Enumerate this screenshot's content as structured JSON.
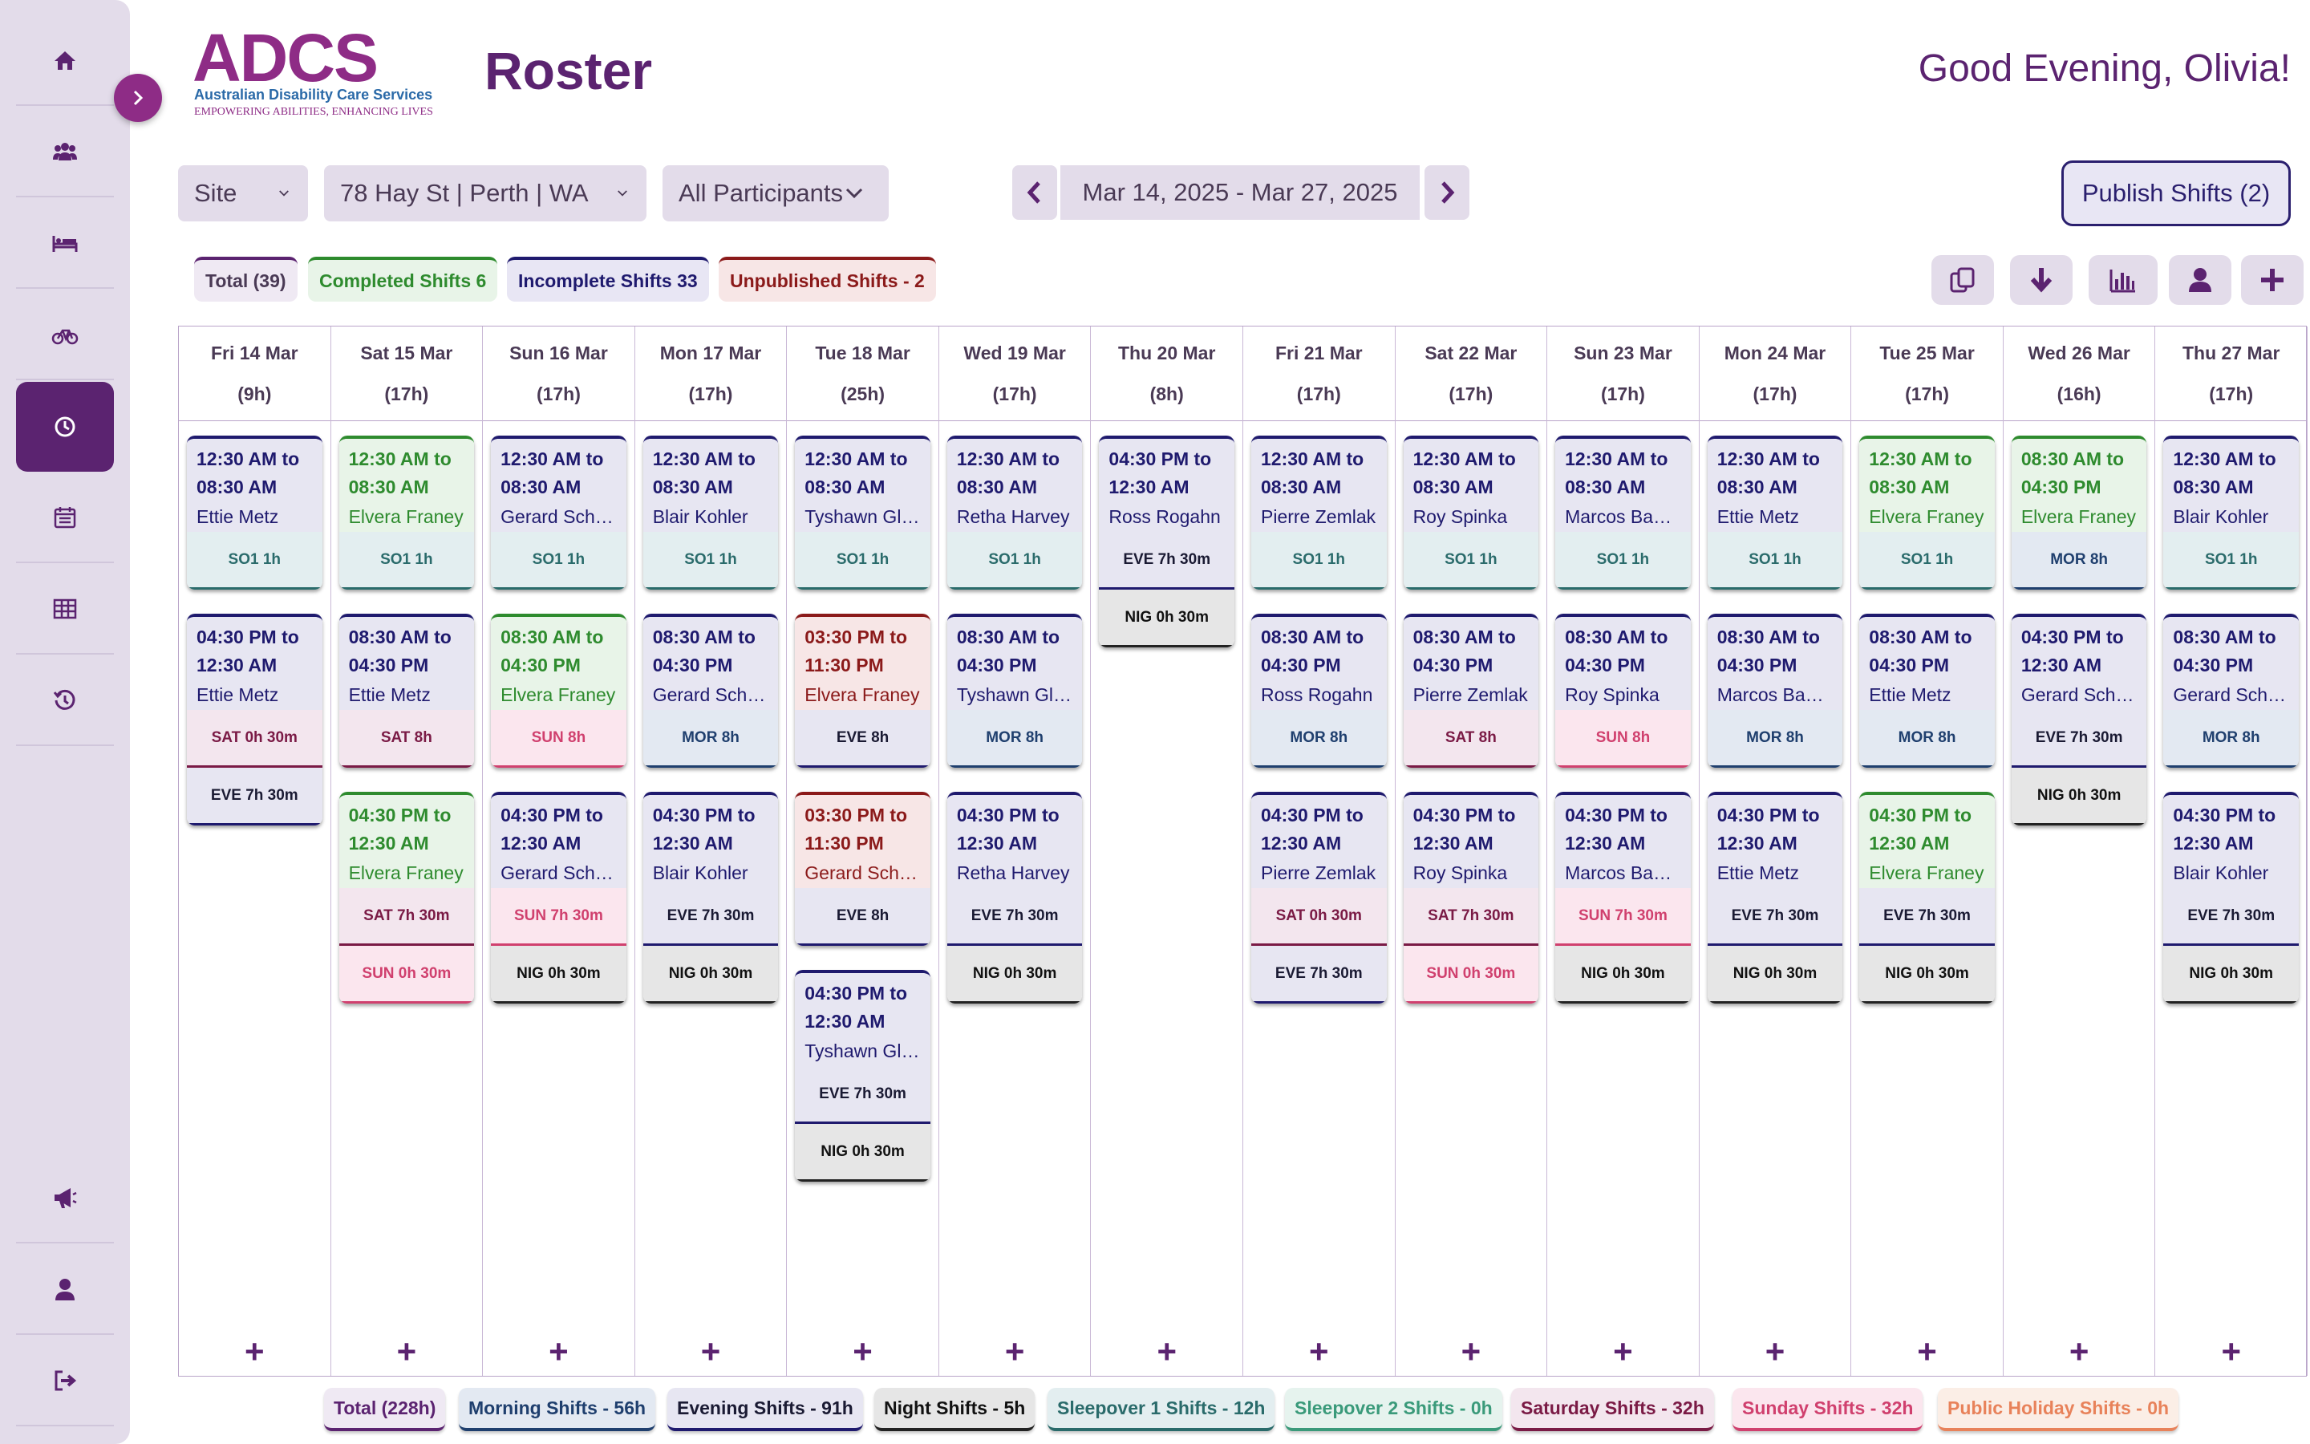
{
  "sidebar": {
    "items": [
      {
        "icon": "home-icon"
      },
      {
        "icon": "users-icon"
      },
      {
        "icon": "bed-icon"
      },
      {
        "icon": "bicycle-icon"
      },
      {
        "icon": "clock-icon",
        "active": true
      },
      {
        "icon": "calendar-icon"
      },
      {
        "icon": "table-icon"
      },
      {
        "icon": "history-icon"
      },
      {
        "icon": "megaphone-icon"
      },
      {
        "icon": "user-icon"
      },
      {
        "icon": "logout-icon"
      }
    ]
  },
  "logo": {
    "word": "ADCS",
    "subtitle": "Australian Disability Care Services",
    "tagline": "EMPOWERING ABILITIES, ENHANCING LIVES"
  },
  "header": {
    "title": "Roster",
    "greeting": "Good Evening, Olivia!"
  },
  "filters": {
    "site_label": "Site",
    "site_value": "78 Hay St | Perth | WA",
    "participants": "All Participants"
  },
  "date_range": "Mar 14, 2025 -  Mar 27, 2025",
  "publish_label": "Publish Shifts (2)",
  "summary": {
    "total": "Total (39)",
    "completed": "Completed Shifts 6",
    "incomplete": "Incomplete Shifts 33",
    "unpublished": "Unpublished Shifts - 2"
  },
  "colors": {
    "accent": "#5b2370",
    "incomplete": "#1f1a6e",
    "completed": "#2e8b2e",
    "unpublished": "#8b1a1a"
  },
  "days": [
    {
      "date": "Fri 14 Mar",
      "hours": "(9h)",
      "shifts": [
        {
          "status": "incomplete",
          "time1": "12:30 AM to",
          "time2": "08:30 AM",
          "name": "Ettie Metz",
          "tags": [
            {
              "label": "SO1 1h",
              "type": "so1"
            }
          ]
        },
        {
          "status": "incomplete",
          "time1": "04:30 PM to",
          "time2": "12:30 AM",
          "name": "Ettie Metz",
          "tags": [
            {
              "label": "SAT 0h 30m",
              "type": "sat"
            },
            {
              "label": "EVE 7h 30m",
              "type": "eve"
            }
          ]
        }
      ]
    },
    {
      "date": "Sat 15 Mar",
      "hours": "(17h)",
      "shifts": [
        {
          "status": "completed",
          "time1": "12:30 AM to",
          "time2": "08:30 AM",
          "name": "Elvera Franey",
          "tags": [
            {
              "label": "SO1 1h",
              "type": "so1"
            }
          ]
        },
        {
          "status": "incomplete",
          "time1": "08:30 AM to",
          "time2": "04:30 PM",
          "name": "Ettie Metz",
          "tags": [
            {
              "label": "SAT 8h",
              "type": "sat"
            }
          ]
        },
        {
          "status": "completed",
          "time1": "04:30 PM to",
          "time2": "12:30 AM",
          "name": "Elvera Franey",
          "tags": [
            {
              "label": "SAT 7h 30m",
              "type": "sat"
            },
            {
              "label": "SUN 0h 30m",
              "type": "sun"
            }
          ]
        }
      ]
    },
    {
      "date": "Sun 16 Mar",
      "hours": "(17h)",
      "shifts": [
        {
          "status": "incomplete",
          "time1": "12:30 AM to",
          "time2": "08:30 AM",
          "name": "Gerard Schamberger",
          "tags": [
            {
              "label": "SO1 1h",
              "type": "so1"
            }
          ]
        },
        {
          "status": "completed",
          "time1": "08:30 AM to",
          "time2": "04:30 PM",
          "name": "Elvera Franey",
          "tags": [
            {
              "label": "SUN 8h",
              "type": "sun"
            }
          ]
        },
        {
          "status": "incomplete",
          "time1": "04:30 PM to",
          "time2": "12:30 AM",
          "name": "Gerard Schamberger",
          "tags": [
            {
              "label": "SUN 7h 30m",
              "type": "sun"
            },
            {
              "label": "NIG 0h 30m",
              "type": "nig"
            }
          ]
        }
      ]
    },
    {
      "date": "Mon 17 Mar",
      "hours": "(17h)",
      "shifts": [
        {
          "status": "incomplete",
          "time1": "12:30 AM to",
          "time2": "08:30 AM",
          "name": "Blair Kohler",
          "tags": [
            {
              "label": "SO1 1h",
              "type": "so1"
            }
          ]
        },
        {
          "status": "incomplete",
          "time1": "08:30 AM to",
          "time2": "04:30 PM",
          "name": "Gerard Schamberger",
          "tags": [
            {
              "label": "MOR 8h",
              "type": "mor"
            }
          ]
        },
        {
          "status": "incomplete",
          "time1": "04:30 PM to",
          "time2": "12:30 AM",
          "name": "Blair Kohler",
          "tags": [
            {
              "label": "EVE 7h 30m",
              "type": "eve"
            },
            {
              "label": "NIG 0h 30m",
              "type": "nig"
            }
          ]
        }
      ]
    },
    {
      "date": "Tue 18 Mar",
      "hours": "(25h)",
      "shifts": [
        {
          "status": "incomplete",
          "time1": "12:30 AM to",
          "time2": "08:30 AM",
          "name": "Tyshawn Glover",
          "tags": [
            {
              "label": "SO1 1h",
              "type": "so1"
            }
          ]
        },
        {
          "status": "unpublished",
          "time1": "03:30 PM to",
          "time2": "11:30 PM",
          "name": "Elvera Franey",
          "tags": [
            {
              "label": "EVE 8h",
              "type": "eve"
            }
          ]
        },
        {
          "status": "unpublished",
          "time1": "03:30 PM to",
          "time2": "11:30 PM",
          "name": "Gerard Schamberger",
          "tags": [
            {
              "label": "EVE 8h",
              "type": "eve"
            }
          ]
        },
        {
          "status": "incomplete",
          "time1": "04:30 PM to",
          "time2": "12:30 AM",
          "name": "Tyshawn Glover",
          "tags": [
            {
              "label": "EVE 7h 30m",
              "type": "eve"
            },
            {
              "label": "NIG 0h 30m",
              "type": "nig"
            }
          ]
        }
      ]
    },
    {
      "date": "Wed 19 Mar",
      "hours": "(17h)",
      "shifts": [
        {
          "status": "incomplete",
          "time1": "12:30 AM to",
          "time2": "08:30 AM",
          "name": "Retha Harvey",
          "tags": [
            {
              "label": "SO1 1h",
              "type": "so1"
            }
          ]
        },
        {
          "status": "incomplete",
          "time1": "08:30 AM to",
          "time2": "04:30 PM",
          "name": "Tyshawn Glover",
          "tags": [
            {
              "label": "MOR 8h",
              "type": "mor"
            }
          ]
        },
        {
          "status": "incomplete",
          "time1": "04:30 PM to",
          "time2": "12:30 AM",
          "name": "Retha Harvey",
          "tags": [
            {
              "label": "EVE 7h 30m",
              "type": "eve"
            },
            {
              "label": "NIG 0h 30m",
              "type": "nig"
            }
          ]
        }
      ]
    },
    {
      "date": "Thu 20 Mar",
      "hours": "(8h)",
      "shifts": [
        {
          "status": "incomplete",
          "time1": "04:30 PM to",
          "time2": "12:30 AM",
          "name": "Ross Rogahn",
          "tags": [
            {
              "label": "EVE 7h 30m",
              "type": "eve"
            },
            {
              "label": "NIG 0h 30m",
              "type": "nig"
            }
          ]
        }
      ]
    },
    {
      "date": "Fri 21 Mar",
      "hours": "(17h)",
      "shifts": [
        {
          "status": "incomplete",
          "time1": "12:30 AM to",
          "time2": "08:30 AM",
          "name": "Pierre Zemlak",
          "tags": [
            {
              "label": "SO1 1h",
              "type": "so1"
            }
          ]
        },
        {
          "status": "incomplete",
          "time1": "08:30 AM to",
          "time2": "04:30 PM",
          "name": "Ross Rogahn",
          "tags": [
            {
              "label": "MOR 8h",
              "type": "mor"
            }
          ]
        },
        {
          "status": "incomplete",
          "time1": "04:30 PM to",
          "time2": "12:30 AM",
          "name": "Pierre Zemlak",
          "tags": [
            {
              "label": "SAT 0h 30m",
              "type": "sat"
            },
            {
              "label": "EVE 7h 30m",
              "type": "eve"
            }
          ]
        }
      ]
    },
    {
      "date": "Sat 22 Mar",
      "hours": "(17h)",
      "shifts": [
        {
          "status": "incomplete",
          "time1": "12:30 AM to",
          "time2": "08:30 AM",
          "name": "Roy Spinka",
          "tags": [
            {
              "label": "SO1 1h",
              "type": "so1"
            }
          ]
        },
        {
          "status": "incomplete",
          "time1": "08:30 AM to",
          "time2": "04:30 PM",
          "name": "Pierre Zemlak",
          "tags": [
            {
              "label": "SAT 8h",
              "type": "sat"
            }
          ]
        },
        {
          "status": "incomplete",
          "time1": "04:30 PM to",
          "time2": "12:30 AM",
          "name": "Roy Spinka",
          "tags": [
            {
              "label": "SAT 7h 30m",
              "type": "sat"
            },
            {
              "label": "SUN 0h 30m",
              "type": "sun"
            }
          ]
        }
      ]
    },
    {
      "date": "Sun 23 Mar",
      "hours": "(17h)",
      "shifts": [
        {
          "status": "incomplete",
          "time1": "12:30 AM to",
          "time2": "08:30 AM",
          "name": "Marcos Bahringer",
          "tags": [
            {
              "label": "SO1 1h",
              "type": "so1"
            }
          ]
        },
        {
          "status": "incomplete",
          "time1": "08:30 AM to",
          "time2": "04:30 PM",
          "name": "Roy Spinka",
          "tags": [
            {
              "label": "SUN 8h",
              "type": "sun"
            }
          ]
        },
        {
          "status": "incomplete",
          "time1": "04:30 PM to",
          "time2": "12:30 AM",
          "name": "Marcos Bahringer",
          "tags": [
            {
              "label": "SUN 7h 30m",
              "type": "sun"
            },
            {
              "label": "NIG 0h 30m",
              "type": "nig"
            }
          ]
        }
      ]
    },
    {
      "date": "Mon 24 Mar",
      "hours": "(17h)",
      "shifts": [
        {
          "status": "incomplete",
          "time1": "12:30 AM to",
          "time2": "08:30 AM",
          "name": "Ettie Metz",
          "tags": [
            {
              "label": "SO1 1h",
              "type": "so1"
            }
          ]
        },
        {
          "status": "incomplete",
          "time1": "08:30 AM to",
          "time2": "04:30 PM",
          "name": "Marcos Bahringer",
          "tags": [
            {
              "label": "MOR 8h",
              "type": "mor"
            }
          ]
        },
        {
          "status": "incomplete",
          "time1": "04:30 PM to",
          "time2": "12:30 AM",
          "name": "Ettie Metz",
          "tags": [
            {
              "label": "EVE 7h 30m",
              "type": "eve"
            },
            {
              "label": "NIG 0h 30m",
              "type": "nig"
            }
          ]
        }
      ]
    },
    {
      "date": "Tue 25 Mar",
      "hours": "(17h)",
      "shifts": [
        {
          "status": "completed",
          "time1": "12:30 AM to",
          "time2": "08:30 AM",
          "name": "Elvera Franey",
          "tags": [
            {
              "label": "SO1 1h",
              "type": "so1"
            }
          ]
        },
        {
          "status": "incomplete",
          "time1": "08:30 AM to",
          "time2": "04:30 PM",
          "name": "Ettie Metz",
          "tags": [
            {
              "label": "MOR 8h",
              "type": "mor"
            }
          ]
        },
        {
          "status": "completed",
          "time1": "04:30 PM to",
          "time2": "12:30 AM",
          "name": "Elvera Franey",
          "tags": [
            {
              "label": "EVE 7h 30m",
              "type": "eve"
            },
            {
              "label": "NIG 0h 30m",
              "type": "nig"
            }
          ]
        }
      ]
    },
    {
      "date": "Wed 26 Mar",
      "hours": "(16h)",
      "shifts": [
        {
          "status": "completed",
          "time1": "08:30 AM to",
          "time2": "04:30 PM",
          "name": "Elvera Franey",
          "tags": [
            {
              "label": "MOR 8h",
              "type": "mor"
            }
          ]
        },
        {
          "status": "incomplete",
          "time1": "04:30 PM to",
          "time2": "12:30 AM",
          "name": "Gerard Schamberger",
          "tags": [
            {
              "label": "EVE 7h 30m",
              "type": "eve"
            },
            {
              "label": "NIG 0h 30m",
              "type": "nig"
            }
          ]
        }
      ]
    },
    {
      "date": "Thu 27 Mar",
      "hours": "(17h)",
      "shifts": [
        {
          "status": "incomplete",
          "time1": "12:30 AM to",
          "time2": "08:30 AM",
          "name": "Blair Kohler",
          "tags": [
            {
              "label": "SO1 1h",
              "type": "so1"
            }
          ]
        },
        {
          "status": "incomplete",
          "time1": "08:30 AM to",
          "time2": "04:30 PM",
          "name": "Gerard Schamberger",
          "tags": [
            {
              "label": "MOR 8h",
              "type": "mor"
            }
          ]
        },
        {
          "status": "incomplete",
          "time1": "04:30 PM to",
          "time2": "12:30 AM",
          "name": "Blair Kohler",
          "tags": [
            {
              "label": "EVE 7h 30m",
              "type": "eve"
            },
            {
              "label": "NIG 0h 30m",
              "type": "nig"
            }
          ]
        }
      ]
    }
  ],
  "add_symbol": "+",
  "legend": [
    {
      "label": "Total (228h)",
      "type": "total"
    },
    {
      "label": "Morning Shifts - 56h",
      "type": "mor"
    },
    {
      "label": "Evening Shifts - 91h",
      "type": "eve"
    },
    {
      "label": "Night Shifts - 5h",
      "type": "nig"
    },
    {
      "label": "Sleepover 1 Shifts - 12h",
      "type": "so1"
    },
    {
      "label": "Sleepover 2 Shifts - 0h",
      "type": "so2"
    },
    {
      "label": "Saturday Shifts - 32h",
      "type": "sat"
    },
    {
      "label": "Sunday Shifts - 32h",
      "type": "sun"
    },
    {
      "label": "Public Holiday Shifts - 0h",
      "type": "ph"
    }
  ]
}
